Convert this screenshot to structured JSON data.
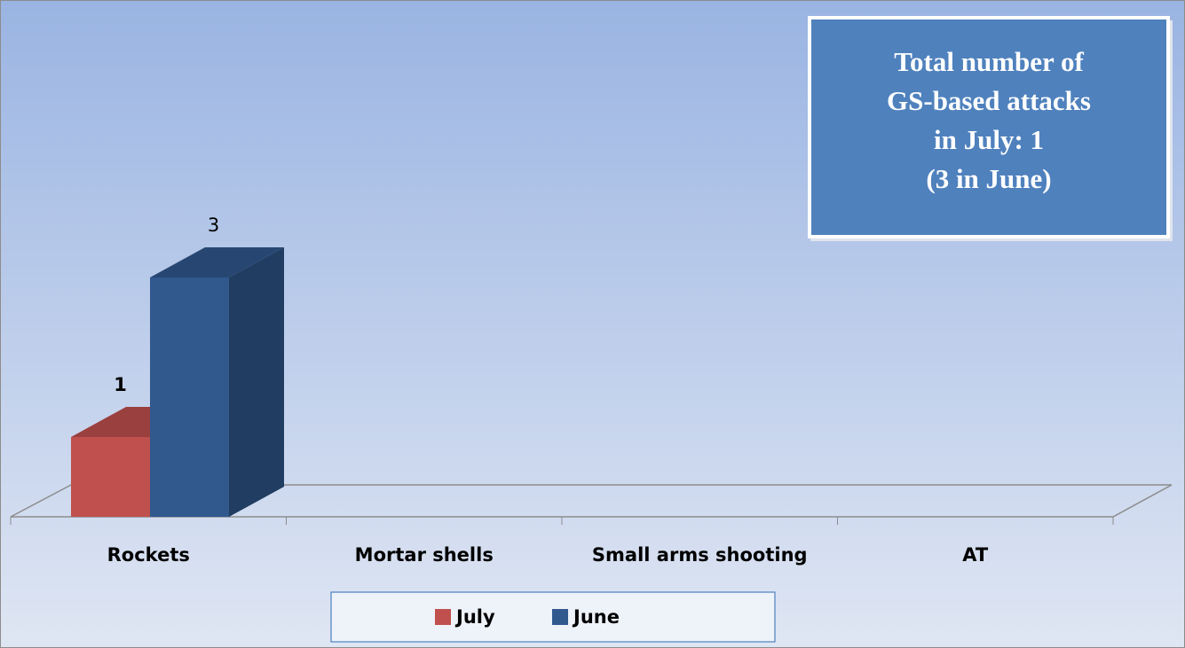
{
  "chart_data": {
    "type": "bar3d",
    "categories": [
      "Rockets",
      "Mortar shells",
      "Small arms shooting",
      "AT"
    ],
    "series": [
      {
        "name": "July",
        "color": "#c0504d",
        "values": [
          1,
          0,
          0,
          0
        ]
      },
      {
        "name": "June",
        "color": "#31598e",
        "values": [
          3,
          0,
          0,
          0
        ]
      }
    ],
    "annotation": [
      "Total number of",
      "GS-based attacks",
      "in July: 1",
      "(3 in June)"
    ],
    "legend": "bottom"
  }
}
